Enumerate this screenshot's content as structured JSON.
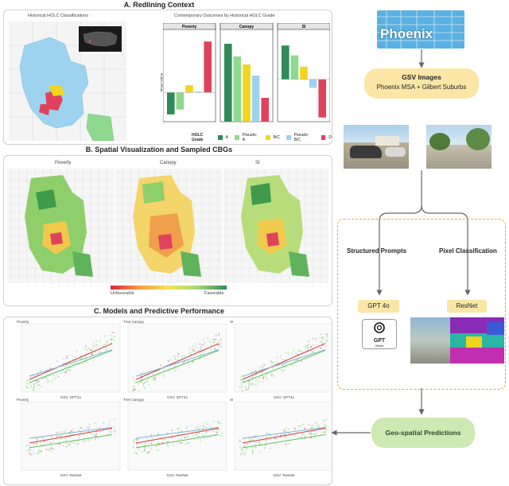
{
  "sections": {
    "a_title": "A. Redlining Context",
    "b_title": "B. Spatial Visualization and Sampled CBGs",
    "c_title": "C. Models and Predictive Performance"
  },
  "panel_a": {
    "map_title": "Historical HOLC Classifications",
    "chart_title": "Contemporary Outcomes by Historical HOLC Grade",
    "ylabel": "Mean Value",
    "legend_title": "HOLC Grade",
    "legend": [
      {
        "label": "A",
        "color": "#2e8b57"
      },
      {
        "label": "Pseudo-A",
        "color": "#8fd98f"
      },
      {
        "label": "B/C",
        "color": "#f3d41f"
      },
      {
        "label": "Pseudo-B/C",
        "color": "#9dd3ee"
      },
      {
        "label": "D",
        "color": "#e0425d"
      }
    ]
  },
  "chart_data": [
    {
      "type": "bar",
      "title": "Poverty",
      "categories": [
        "A",
        "Pseudo-A",
        "B/C",
        "Pseudo-B/C",
        "D"
      ],
      "values": [
        -0.45,
        -0.35,
        0.15,
        0.02,
        1.05
      ],
      "ylim": [
        -0.6,
        1.2
      ]
    },
    {
      "type": "bar",
      "title": "Canopy",
      "categories": [
        "A",
        "Pseudo-A",
        "B/C",
        "Pseudo-B/C",
        "D"
      ],
      "values": [
        0.98,
        0.82,
        0.72,
        0.58,
        0.3
      ],
      "ylim": [
        0,
        1.1
      ]
    },
    {
      "type": "bar",
      "title": "SI",
      "categories": [
        "A",
        "Pseudo-A",
        "B/C",
        "Pseudo-B/C",
        "D"
      ],
      "values": [
        1.2,
        0.85,
        0.45,
        -0.3,
        -1.35
      ],
      "ylim": [
        -1.5,
        1.6
      ]
    }
  ],
  "panel_b": {
    "maps": [
      "Poverty",
      "Canopy",
      "SI"
    ],
    "scale_low": "Unfavorable",
    "scale_high": "Favorable"
  },
  "panel_c": {
    "rows": [
      {
        "x_label": "GSV: GPT4o",
        "plots": [
          "Poverty",
          "Tree Canopy",
          "SI"
        ]
      },
      {
        "x_label": "GSV: ResNet",
        "plots": [
          "Poverty",
          "Tree Canopy",
          "SI"
        ]
      }
    ]
  },
  "flow": {
    "city": "Phoenix",
    "gsv_title": "GSV Images",
    "gsv_sub": "Phoenix MSA + Gilbert Suburbs",
    "branch_left": "Structured Prompts",
    "branch_right": "Pixel Classification",
    "model_left": "GPT 4o",
    "model_right": "ResNet",
    "gpt_logo_text": "GPT",
    "gpt_logo_sub": "Vision",
    "output": "Geo-spatial Predictions"
  },
  "colors": {
    "holc_a": "#2e8b57",
    "holc_pa": "#8fd98f",
    "holc_bc": "#f3d41f",
    "holc_pbc": "#9dd3ee",
    "holc_d": "#e0425d",
    "accent_orange": "#f0a542",
    "pill_yellow": "#fbe6a6",
    "pill_green": "#cfe9b5"
  }
}
